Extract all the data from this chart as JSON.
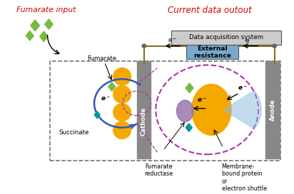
{
  "title": "Current data outout",
  "title_color": "#cc0000",
  "bg_color": "#ffffff",
  "fumarate_input_text": "Fumarate input",
  "fumarate_text": "Fumarate",
  "succinate_text": "Succinate",
  "cathode_text": "Cathode",
  "anode_text": "Anode",
  "fumarate_reductase_text": "Fumarate\nreductase",
  "membrane_text": "Membrane-\nbound protein\nor\nelectron shuttle",
  "data_acq_text": "Data acquisition system",
  "ext_res_text": "External\nresistance",
  "gray_color": "#888888",
  "yellow_color": "#f5a800",
  "green_color": "#77bb44",
  "teal_color": "#009999",
  "blue_color": "#3355bb",
  "purple_color": "#aa33aa",
  "light_blue_color": "#88bbdd",
  "dashed_box_color": "#666666",
  "wire_color": "#8a7020",
  "das_bg": "#cccccc",
  "ext_bg": "#77aacc"
}
